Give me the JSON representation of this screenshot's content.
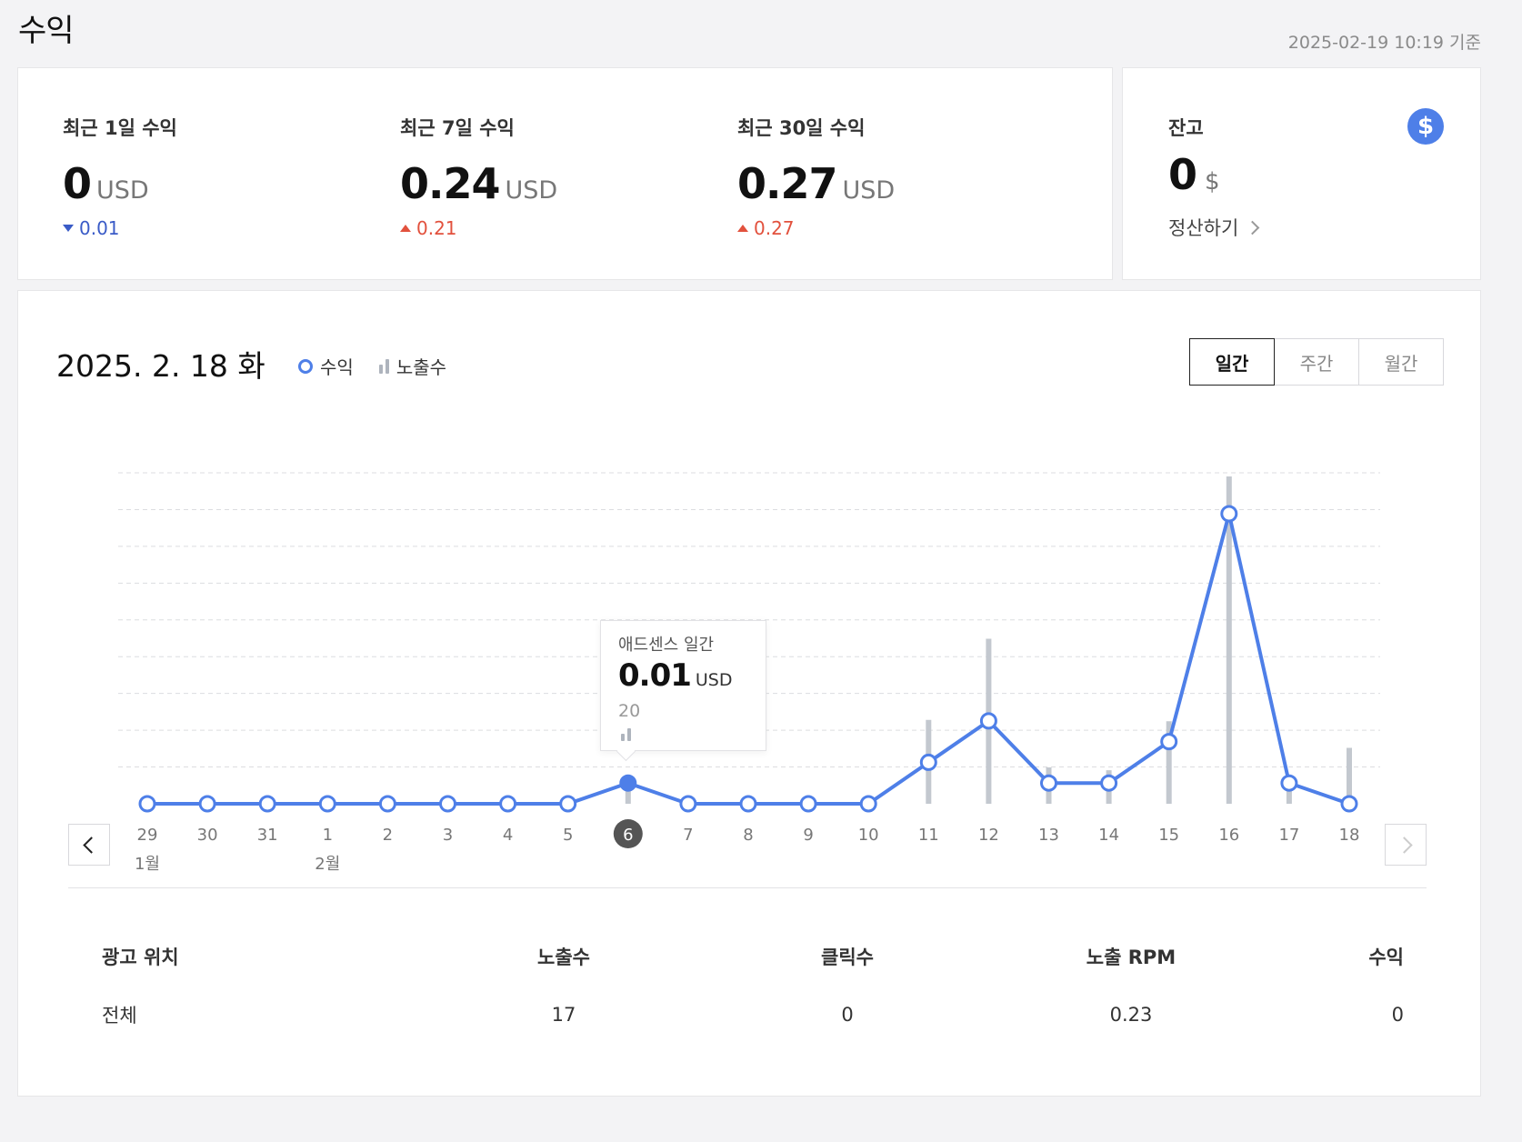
{
  "page": {
    "title": "수익",
    "updated_at": "2025-02-19 10:19 기준"
  },
  "summary": [
    {
      "label": "최근 1일 수익",
      "value": "0",
      "unit": "USD",
      "delta": "0.01",
      "direction": "down"
    },
    {
      "label": "최근 7일 수익",
      "value": "0.24",
      "unit": "USD",
      "delta": "0.21",
      "direction": "up"
    },
    {
      "label": "최근 30일 수익",
      "value": "0.27",
      "unit": "USD",
      "delta": "0.27",
      "direction": "up"
    }
  ],
  "balance": {
    "label": "잔고",
    "value": "0",
    "unit": "$",
    "icon": "dollar-icon",
    "settle_label": "정산하기"
  },
  "chart_section": {
    "date_title": "2025. 2. 18 화",
    "legend_revenue": "수익",
    "legend_impressions": "노출수",
    "toggle": [
      {
        "label": "일간",
        "active": true
      },
      {
        "label": "주간",
        "active": false
      },
      {
        "label": "월간",
        "active": false
      }
    ],
    "tooltip": {
      "title": "애드센스 일간",
      "value": "0.01",
      "unit": "USD",
      "impressions": "20"
    }
  },
  "chart_data": {
    "type": "line",
    "x": [
      "29",
      "30",
      "31",
      "1",
      "2",
      "3",
      "4",
      "5",
      "6",
      "7",
      "8",
      "9",
      "10",
      "11",
      "12",
      "13",
      "14",
      "15",
      "16",
      "17",
      "18"
    ],
    "month_labels": [
      {
        "index": 0,
        "label": "1월"
      },
      {
        "index": 3,
        "label": "2월"
      }
    ],
    "selected_index": 8,
    "series": [
      {
        "name": "수익",
        "type": "line",
        "color": "#4e7fe8",
        "values": [
          0,
          0,
          0,
          0,
          0,
          0,
          0,
          0,
          0.01,
          0,
          0,
          0,
          0,
          0.02,
          0.04,
          0.01,
          0.01,
          0.03,
          0.14,
          0.01,
          0
        ]
      },
      {
        "name": "노출수",
        "type": "bar",
        "color": "#c3c8cf",
        "values": [
          0,
          0,
          0,
          0,
          0,
          0,
          0,
          0,
          20,
          0,
          0,
          0,
          0,
          60,
          118,
          26,
          24,
          59,
          234,
          18,
          40
        ]
      }
    ],
    "grid": true,
    "gridlines": 9
  },
  "table": {
    "headers": [
      "광고 위치",
      "노출수",
      "클릭수",
      "노출 RPM",
      "수익"
    ],
    "rows": [
      [
        "전체",
        "17",
        "0",
        "0.23",
        "0"
      ]
    ]
  }
}
